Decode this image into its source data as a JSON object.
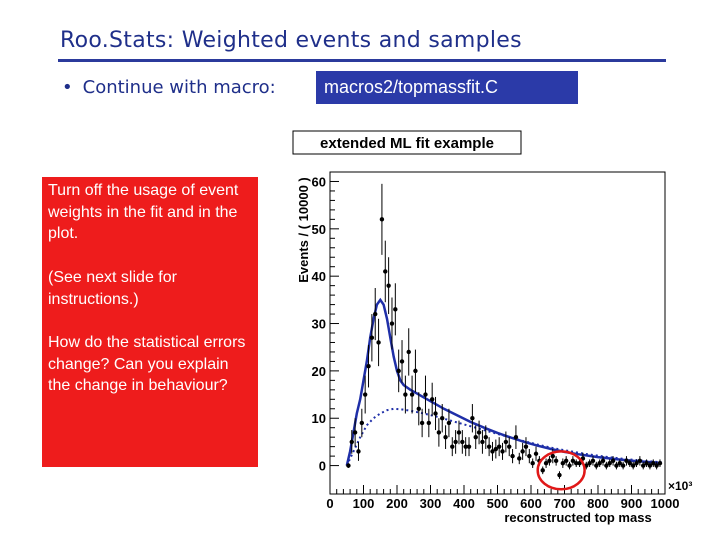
{
  "slide": {
    "title": "Roo.Stats: Weighted events and samples",
    "bullet_marker": "•",
    "bullet_text": "Continue with macro:",
    "macro_name": "macros2/topmassfit.C",
    "note_p1": "Turn off the usage of event weights in the fit and in the plot.",
    "note_p2": "(See next slide for instructions.)",
    "note_p3": "How do the statistical errors change? Can you explain the change in behaviour?",
    "colors": {
      "title": "#1f2f8a",
      "macro_bg": "#2b3aa8",
      "note_bg": "#ee1c1c",
      "fit_curve": "#1f2fa8",
      "highlight_ellipse": "#e01818"
    }
  },
  "chart_data": {
    "type": "scatter",
    "title": "extended ML fit example",
    "xlabel": "reconstructed top mass",
    "ylabel": "Events / ( 10000 )",
    "x_multiplier": "×10³",
    "x_ticks": [
      "0",
      "100",
      "200",
      "300",
      "400",
      "500",
      "600",
      "700",
      "800",
      "900",
      "1000"
    ],
    "y_ticks": [
      "0",
      "10",
      "20",
      "30",
      "40",
      "50",
      "60"
    ],
    "xlim": [
      0,
      1000000
    ],
    "ylim": [
      -6,
      62
    ],
    "points": [
      {
        "x": 55000,
        "y": 0,
        "err": 0.5
      },
      {
        "x": 65000,
        "y": 5,
        "err": 2.5
      },
      {
        "x": 75000,
        "y": 7,
        "err": 3
      },
      {
        "x": 85000,
        "y": 3,
        "err": 2
      },
      {
        "x": 95000,
        "y": 9,
        "err": 3
      },
      {
        "x": 105000,
        "y": 15,
        "err": 4
      },
      {
        "x": 115000,
        "y": 21,
        "err": 4.5
      },
      {
        "x": 125000,
        "y": 27,
        "err": 5
      },
      {
        "x": 135000,
        "y": 32,
        "err": 5.5
      },
      {
        "x": 145000,
        "y": 26,
        "err": 5
      },
      {
        "x": 155000,
        "y": 52,
        "err": 7.5
      },
      {
        "x": 165000,
        "y": 41,
        "err": 6.5
      },
      {
        "x": 175000,
        "y": 38,
        "err": 6
      },
      {
        "x": 185000,
        "y": 30,
        "err": 5.5
      },
      {
        "x": 195000,
        "y": 33,
        "err": 5.5
      },
      {
        "x": 205000,
        "y": 20,
        "err": 4.5
      },
      {
        "x": 215000,
        "y": 22,
        "err": 4.5
      },
      {
        "x": 225000,
        "y": 15,
        "err": 4
      },
      {
        "x": 235000,
        "y": 24,
        "err": 5
      },
      {
        "x": 245000,
        "y": 15,
        "err": 4
      },
      {
        "x": 255000,
        "y": 20,
        "err": 4.5
      },
      {
        "x": 265000,
        "y": 12,
        "err": 3.5
      },
      {
        "x": 275000,
        "y": 9,
        "err": 3
      },
      {
        "x": 285000,
        "y": 15,
        "err": 4
      },
      {
        "x": 295000,
        "y": 9,
        "err": 3
      },
      {
        "x": 305000,
        "y": 14,
        "err": 3.5
      },
      {
        "x": 315000,
        "y": 11,
        "err": 3.5
      },
      {
        "x": 325000,
        "y": 7,
        "err": 3
      },
      {
        "x": 335000,
        "y": 10,
        "err": 3
      },
      {
        "x": 345000,
        "y": 6,
        "err": 2.5
      },
      {
        "x": 355000,
        "y": 9,
        "err": 3
      },
      {
        "x": 365000,
        "y": 4,
        "err": 2
      },
      {
        "x": 375000,
        "y": 5,
        "err": 2.5
      },
      {
        "x": 385000,
        "y": 7,
        "err": 2.5
      },
      {
        "x": 395000,
        "y": 5,
        "err": 2.5
      },
      {
        "x": 405000,
        "y": 4,
        "err": 2
      },
      {
        "x": 415000,
        "y": 4,
        "err": 2
      },
      {
        "x": 425000,
        "y": 10,
        "err": 3
      },
      {
        "x": 435000,
        "y": 6,
        "err": 2.5
      },
      {
        "x": 445000,
        "y": 7,
        "err": 2.5
      },
      {
        "x": 455000,
        "y": 5,
        "err": 2.5
      },
      {
        "x": 465000,
        "y": 6,
        "err": 2.5
      },
      {
        "x": 475000,
        "y": 4,
        "err": 2
      },
      {
        "x": 485000,
        "y": 3,
        "err": 2
      },
      {
        "x": 495000,
        "y": 3.5,
        "err": 2
      },
      {
        "x": 505000,
        "y": 4,
        "err": 2
      },
      {
        "x": 515000,
        "y": 3,
        "err": 1.8
      },
      {
        "x": 525000,
        "y": 5,
        "err": 2.2
      },
      {
        "x": 535000,
        "y": 4,
        "err": 2
      },
      {
        "x": 545000,
        "y": 2,
        "err": 1.5
      },
      {
        "x": 555000,
        "y": 6,
        "err": 2.5
      },
      {
        "x": 565000,
        "y": 1.5,
        "err": 1.2
      },
      {
        "x": 575000,
        "y": 3,
        "err": 1.8
      },
      {
        "x": 585000,
        "y": 4,
        "err": 2
      },
      {
        "x": 595000,
        "y": 2,
        "err": 1.5
      },
      {
        "x": 605000,
        "y": 0.5,
        "err": 1
      },
      {
        "x": 615000,
        "y": 2.5,
        "err": 1.5
      },
      {
        "x": 625000,
        "y": 1,
        "err": 1
      },
      {
        "x": 635000,
        "y": -1,
        "err": 0.8
      },
      {
        "x": 645000,
        "y": 0.5,
        "err": 1
      },
      {
        "x": 655000,
        "y": 1,
        "err": 1
      },
      {
        "x": 665000,
        "y": 2,
        "err": 1.5
      },
      {
        "x": 675000,
        "y": 1,
        "err": 1
      },
      {
        "x": 685000,
        "y": -2,
        "err": 0.8
      },
      {
        "x": 695000,
        "y": 0.5,
        "err": 1
      },
      {
        "x": 705000,
        "y": 1,
        "err": 1
      },
      {
        "x": 715000,
        "y": 0,
        "err": 0.8
      },
      {
        "x": 725000,
        "y": 1,
        "err": 1
      },
      {
        "x": 735000,
        "y": 0.5,
        "err": 0.8
      },
      {
        "x": 745000,
        "y": 0.5,
        "err": 0.8
      },
      {
        "x": 755000,
        "y": 1.5,
        "err": 1.2
      },
      {
        "x": 765000,
        "y": 0,
        "err": 0.8
      },
      {
        "x": 775000,
        "y": 0.5,
        "err": 0.8
      },
      {
        "x": 785000,
        "y": 1,
        "err": 1
      },
      {
        "x": 795000,
        "y": 0,
        "err": 0.8
      },
      {
        "x": 805000,
        "y": 0.5,
        "err": 0.8
      },
      {
        "x": 815000,
        "y": 1,
        "err": 1
      },
      {
        "x": 825000,
        "y": 0,
        "err": 0.8
      },
      {
        "x": 835000,
        "y": 0.5,
        "err": 0.8
      },
      {
        "x": 845000,
        "y": 1,
        "err": 1
      },
      {
        "x": 855000,
        "y": 0,
        "err": 0.8
      },
      {
        "x": 865000,
        "y": 0.5,
        "err": 0.8
      },
      {
        "x": 875000,
        "y": 0,
        "err": 0.8
      },
      {
        "x": 885000,
        "y": 1,
        "err": 1
      },
      {
        "x": 895000,
        "y": 0.5,
        "err": 0.8
      },
      {
        "x": 905000,
        "y": 0,
        "err": 0.8
      },
      {
        "x": 915000,
        "y": 0.5,
        "err": 0.8
      },
      {
        "x": 925000,
        "y": 1,
        "err": 1
      },
      {
        "x": 935000,
        "y": 0,
        "err": 0.8
      },
      {
        "x": 945000,
        "y": 0.5,
        "err": 0.8
      },
      {
        "x": 955000,
        "y": 0,
        "err": 0.8
      },
      {
        "x": 965000,
        "y": 0.5,
        "err": 0.8
      },
      {
        "x": 975000,
        "y": 0,
        "err": 0.8
      },
      {
        "x": 985000,
        "y": 0.5,
        "err": 0.8
      }
    ],
    "curves": [
      {
        "style": "solid",
        "points": [
          [
            50000,
            0
          ],
          [
            60000,
            3
          ],
          [
            70000,
            7
          ],
          [
            80000,
            11
          ],
          [
            90000,
            14
          ],
          [
            100000,
            18
          ],
          [
            110000,
            22
          ],
          [
            120000,
            27
          ],
          [
            130000,
            31
          ],
          [
            140000,
            34
          ],
          [
            150000,
            35
          ],
          [
            160000,
            34
          ],
          [
            170000,
            31
          ],
          [
            180000,
            27
          ],
          [
            190000,
            23
          ],
          [
            200000,
            20
          ],
          [
            210000,
            18
          ],
          [
            220000,
            17
          ],
          [
            240000,
            16
          ],
          [
            260000,
            15.2
          ],
          [
            280000,
            14.4
          ],
          [
            300000,
            13.6
          ],
          [
            340000,
            12
          ],
          [
            380000,
            10.6
          ],
          [
            420000,
            9.2
          ],
          [
            460000,
            8
          ],
          [
            500000,
            6.9
          ],
          [
            540000,
            5.9
          ],
          [
            580000,
            5
          ],
          [
            620000,
            4.2
          ],
          [
            660000,
            3.5
          ],
          [
            700000,
            2.9
          ],
          [
            740000,
            2.4
          ],
          [
            800000,
            1.8
          ],
          [
            860000,
            1.3
          ],
          [
            920000,
            0.9
          ],
          [
            980000,
            0.6
          ]
        ]
      },
      {
        "style": "dotted",
        "points": [
          [
            50000,
            0
          ],
          [
            70000,
            3
          ],
          [
            90000,
            6
          ],
          [
            110000,
            8.5
          ],
          [
            130000,
            10
          ],
          [
            150000,
            11
          ],
          [
            170000,
            11.7
          ],
          [
            190000,
            12
          ],
          [
            210000,
            11.9
          ],
          [
            240000,
            11.6
          ],
          [
            280000,
            11
          ],
          [
            320000,
            10.3
          ],
          [
            360000,
            9.5
          ],
          [
            400000,
            8.7
          ],
          [
            440000,
            7.9
          ],
          [
            480000,
            7.1
          ],
          [
            520000,
            6.3
          ],
          [
            560000,
            5.5
          ],
          [
            600000,
            4.8
          ],
          [
            640000,
            4.1
          ],
          [
            680000,
            3.5
          ],
          [
            720000,
            3
          ],
          [
            760000,
            2.5
          ],
          [
            820000,
            1.9
          ],
          [
            880000,
            1.4
          ],
          [
            940000,
            1
          ],
          [
            990000,
            0.7
          ]
        ]
      }
    ],
    "grid": false,
    "highlight": {
      "shape": "ellipse",
      "x_range": [
        620000,
        760000
      ],
      "y_range": [
        -5,
        3
      ]
    }
  }
}
